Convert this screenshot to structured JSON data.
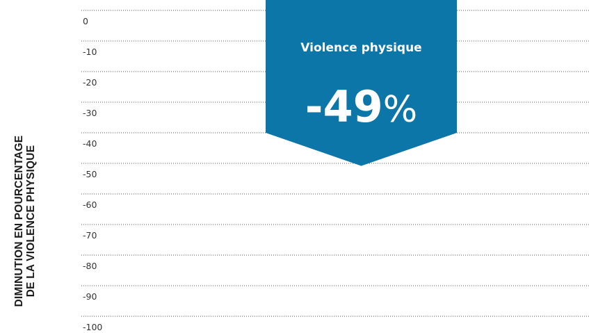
{
  "chart_data": {
    "type": "bar",
    "ylabel_lines": [
      "DIMINUTION EN POURCENTAGE",
      "DE LA VIOLENCE PHYSIQUE"
    ],
    "ylim": [
      -100,
      0
    ],
    "yticks": [
      0,
      -10,
      -20,
      -30,
      -40,
      -50,
      -60,
      -70,
      -80,
      -90,
      -100
    ],
    "grid": true,
    "callout": {
      "title": "Violence physique",
      "value": "-49",
      "unit": "%",
      "numeric_value": -49
    }
  },
  "colors": {
    "callout_fill": "#0d76a9",
    "text_white": "#ffffff",
    "tick_text": "#333333",
    "grid": "#555555"
  }
}
